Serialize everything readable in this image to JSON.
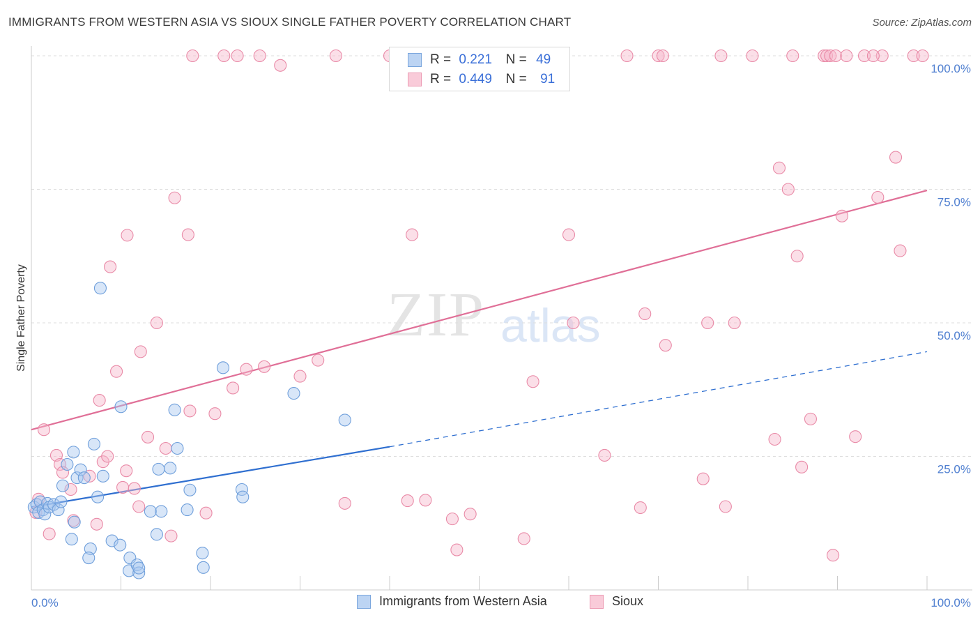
{
  "title": "IMMIGRANTS FROM WESTERN ASIA VS SIOUX SINGLE FATHER POVERTY CORRELATION CHART",
  "source": "Source: ZipAtlas.com",
  "watermark": {
    "zip": "ZIP",
    "atlas": "atlas"
  },
  "legend": {
    "rows": [
      {
        "r_label": "R =",
        "r_value": "0.221",
        "n_label": "N =",
        "n_value": "49"
      },
      {
        "r_label": "R =",
        "r_value": "0.449",
        "n_label": "N =",
        "n_value": "91"
      }
    ]
  },
  "bottom_legend": [
    "Immigrants from Western Asia",
    "Sioux"
  ],
  "colors": {
    "blue_fill": "#a9c8f0",
    "blue_stroke": "#6f9fdb",
    "blue_line": "#2f6fd0",
    "pink_fill": "#f6b8cb",
    "pink_stroke": "#e98aa7",
    "pink_line": "#e06f97",
    "tick_text": "#4f7fd0",
    "grid": "#dddddd"
  },
  "chart_data": {
    "type": "scatter",
    "title": "IMMIGRANTS FROM WESTERN ASIA VS SIOUX SINGLE FATHER POVERTY CORRELATION CHART",
    "xlabel": "",
    "ylabel": "Single Father Poverty",
    "xlim": [
      0,
      100
    ],
    "ylim": [
      0,
      100
    ],
    "x_tick_labels": [
      "0.0%",
      "100.0%"
    ],
    "y_tick_labels": [
      "25.0%",
      "50.0%",
      "75.0%",
      "100.0%"
    ],
    "y_ticks": [
      25,
      50,
      75,
      100
    ],
    "grid": true,
    "legend_position": "top-center",
    "series": [
      {
        "name": "Immigrants from Western Asia",
        "color": "#a9c8f0",
        "points": [
          [
            0.3,
            15.5
          ],
          [
            0.6,
            16.0
          ],
          [
            0.8,
            14.5
          ],
          [
            1.0,
            16.5
          ],
          [
            1.3,
            15.0
          ],
          [
            1.5,
            14.2
          ],
          [
            1.8,
            16.2
          ],
          [
            2.0,
            15.5
          ],
          [
            2.5,
            16.0
          ],
          [
            3.0,
            15.0
          ],
          [
            3.3,
            16.5
          ],
          [
            3.5,
            19.5
          ],
          [
            4.0,
            23.5
          ],
          [
            4.5,
            9.5
          ],
          [
            4.7,
            25.8
          ],
          [
            4.8,
            12.7
          ],
          [
            5.1,
            21.0
          ],
          [
            5.5,
            22.5
          ],
          [
            5.9,
            21.0
          ],
          [
            6.6,
            7.7
          ],
          [
            6.4,
            6.0
          ],
          [
            7.0,
            27.3
          ],
          [
            7.4,
            17.4
          ],
          [
            7.7,
            56.5
          ],
          [
            8.0,
            21.3
          ],
          [
            9.0,
            9.2
          ],
          [
            9.9,
            8.4
          ],
          [
            10.0,
            34.3
          ],
          [
            10.9,
            3.6
          ],
          [
            11.0,
            6.0
          ],
          [
            11.8,
            4.7
          ],
          [
            12.0,
            3.2
          ],
          [
            13.3,
            14.7
          ],
          [
            14.0,
            10.4
          ],
          [
            14.2,
            22.6
          ],
          [
            14.5,
            14.7
          ],
          [
            15.5,
            22.8
          ],
          [
            16.0,
            33.7
          ],
          [
            16.3,
            26.5
          ],
          [
            17.4,
            15.0
          ],
          [
            17.7,
            18.7
          ],
          [
            19.1,
            6.9
          ],
          [
            19.2,
            4.2
          ],
          [
            21.4,
            41.6
          ],
          [
            23.5,
            18.8
          ],
          [
            23.6,
            17.4
          ],
          [
            29.3,
            36.8
          ],
          [
            35.0,
            31.8
          ],
          [
            12.0,
            4.1
          ]
        ]
      },
      {
        "name": "Sioux",
        "color": "#f6b8cb",
        "points": [
          [
            0.5,
            14.5
          ],
          [
            0.8,
            17.0
          ],
          [
            1.4,
            30.0
          ],
          [
            2.0,
            10.5
          ],
          [
            2.8,
            25.2
          ],
          [
            3.2,
            23.5
          ],
          [
            3.5,
            22.0
          ],
          [
            4.4,
            18.8
          ],
          [
            4.7,
            13.0
          ],
          [
            6.5,
            21.3
          ],
          [
            7.3,
            12.3
          ],
          [
            7.6,
            35.5
          ],
          [
            8.0,
            24.0
          ],
          [
            8.5,
            25.0
          ],
          [
            8.8,
            60.5
          ],
          [
            9.5,
            40.9
          ],
          [
            10.2,
            19.2
          ],
          [
            10.6,
            22.3
          ],
          [
            10.7,
            66.4
          ],
          [
            11.5,
            19.0
          ],
          [
            12.0,
            15.6
          ],
          [
            12.2,
            44.6
          ],
          [
            13.0,
            28.6
          ],
          [
            14.0,
            50.0
          ],
          [
            15.0,
            26.5
          ],
          [
            15.6,
            10.1
          ],
          [
            16.0,
            73.4
          ],
          [
            17.5,
            66.5
          ],
          [
            17.7,
            33.5
          ],
          [
            18.0,
            100
          ],
          [
            19.5,
            14.4
          ],
          [
            20.5,
            33.0
          ],
          [
            21.5,
            100
          ],
          [
            22.5,
            37.8
          ],
          [
            23.0,
            100
          ],
          [
            24.0,
            41.3
          ],
          [
            25.5,
            100
          ],
          [
            26.0,
            41.8
          ],
          [
            27.8,
            98.2
          ],
          [
            30.0,
            40.0
          ],
          [
            32.0,
            43.0
          ],
          [
            34.0,
            100
          ],
          [
            35.0,
            16.2
          ],
          [
            40.0,
            100
          ],
          [
            42.0,
            16.7
          ],
          [
            42.5,
            66.5
          ],
          [
            44.0,
            16.8
          ],
          [
            47.0,
            13.3
          ],
          [
            47.5,
            7.5
          ],
          [
            49.0,
            14.2
          ],
          [
            52.0,
            100
          ],
          [
            55.0,
            9.6
          ],
          [
            56.0,
            39.0
          ],
          [
            60.0,
            66.5
          ],
          [
            60.5,
            50.0
          ],
          [
            64.0,
            25.2
          ],
          [
            66.5,
            100
          ],
          [
            68.0,
            15.4
          ],
          [
            68.5,
            51.7
          ],
          [
            70.0,
            100
          ],
          [
            70.5,
            100
          ],
          [
            70.8,
            45.8
          ],
          [
            75.0,
            20.8
          ],
          [
            75.5,
            50.0
          ],
          [
            77.0,
            100
          ],
          [
            77.5,
            15.6
          ],
          [
            78.5,
            50.0
          ],
          [
            80.5,
            100
          ],
          [
            83.0,
            28.2
          ],
          [
            83.5,
            79.0
          ],
          [
            84.5,
            75.0
          ],
          [
            85.0,
            100
          ],
          [
            85.5,
            62.5
          ],
          [
            86.0,
            23.0
          ],
          [
            87.0,
            32.0
          ],
          [
            88.5,
            100
          ],
          [
            88.8,
            100
          ],
          [
            89.2,
            100
          ],
          [
            89.5,
            6.5
          ],
          [
            89.8,
            100
          ],
          [
            90.5,
            70.0
          ],
          [
            92.0,
            28.7
          ],
          [
            93.0,
            100
          ],
          [
            94.5,
            73.5
          ],
          [
            95.0,
            100
          ],
          [
            96.5,
            81.0
          ],
          [
            97.0,
            63.5
          ],
          [
            98.5,
            100
          ],
          [
            99.5,
            100
          ],
          [
            91.0,
            100
          ],
          [
            94.0,
            100
          ]
        ]
      }
    ],
    "trend_lines": [
      {
        "series": "Immigrants from Western Asia",
        "x": [
          0,
          40
        ],
        "y": [
          15.5,
          26.8
        ],
        "dashed_x": [
          40,
          100
        ],
        "dashed_y": [
          26.8,
          44.6
        ]
      },
      {
        "series": "Sioux",
        "x": [
          0,
          100
        ],
        "y": [
          30.0,
          74.8
        ]
      }
    ]
  }
}
